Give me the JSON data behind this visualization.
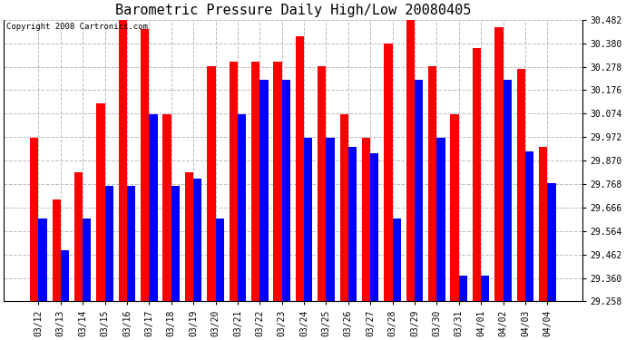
{
  "title": "Barometric Pressure Daily High/Low 20080405",
  "copyright_text": "Copyright 2008 Cartronics.com",
  "dates": [
    "03/12",
    "03/13",
    "03/14",
    "03/15",
    "03/16",
    "03/17",
    "03/18",
    "03/19",
    "03/20",
    "03/21",
    "03/22",
    "03/23",
    "03/24",
    "03/25",
    "03/26",
    "03/27",
    "03/28",
    "03/29",
    "03/30",
    "03/31",
    "04/01",
    "04/02",
    "04/03",
    "04/04"
  ],
  "highs": [
    29.97,
    29.7,
    29.82,
    30.12,
    30.49,
    30.44,
    30.07,
    29.82,
    30.28,
    30.3,
    30.3,
    30.3,
    30.41,
    30.28,
    30.07,
    29.97,
    30.38,
    30.49,
    30.28,
    30.07,
    30.36,
    30.45,
    30.27,
    29.93
  ],
  "lows": [
    29.62,
    29.48,
    29.62,
    29.76,
    29.76,
    30.07,
    29.76,
    29.79,
    29.62,
    30.07,
    30.22,
    30.22,
    29.97,
    29.97,
    29.93,
    29.9,
    29.62,
    30.22,
    29.97,
    29.37,
    29.37,
    30.22,
    29.91,
    29.77
  ],
  "bar_color_high": "#ff0000",
  "bar_color_low": "#0000ff",
  "background_color": "#ffffff",
  "grid_color": "#bbbbbb",
  "ylim_min": 29.258,
  "ylim_max": 30.482,
  "yticks": [
    29.258,
    29.36,
    29.462,
    29.564,
    29.666,
    29.768,
    29.87,
    29.972,
    30.074,
    30.176,
    30.278,
    30.38,
    30.482
  ],
  "title_fontsize": 11,
  "copyright_fontsize": 6.5,
  "tick_fontsize": 7,
  "bar_width": 0.38
}
